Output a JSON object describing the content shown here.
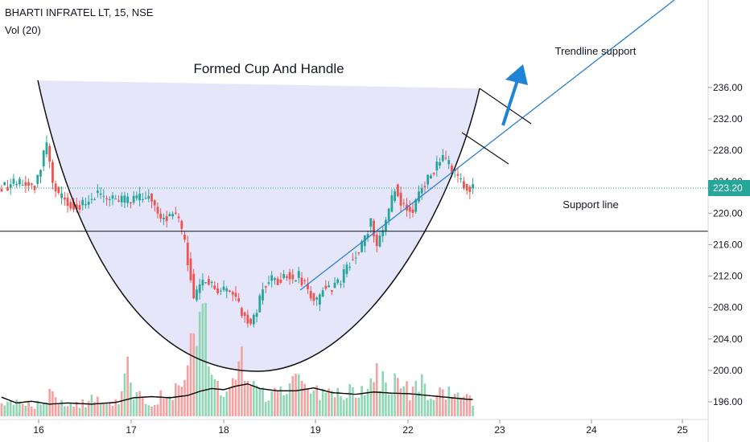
{
  "header": {
    "symbol_line": "BHARTI INFRATEL LT, 15, NSE",
    "volume_indicator": "Vol (20)"
  },
  "colors": {
    "up": "#26a69a",
    "down": "#ef5350",
    "vol_up": "#8fd6b4",
    "vol_down": "#f4a1a1",
    "cup_fill": "#e6e6fb",
    "trendline": "#2a7fd4",
    "last_price_bg": "#26a69a",
    "arrow": "#1f84d6",
    "vol_ma": "#000000"
  },
  "chart_data": {
    "type": "candlestick",
    "y_axis": {
      "range": [
        194.7,
        237.1
      ],
      "ticks": [
        "196.00",
        "200.00",
        "204.00",
        "208.00",
        "212.00",
        "216.00",
        "220.00",
        "224.00",
        "228.00",
        "232.00",
        "236.00"
      ]
    },
    "x_axis": {
      "ticks": [
        "16",
        "17",
        "18",
        "19",
        "22",
        "23",
        "24",
        "25"
      ]
    },
    "last_price": "223.20",
    "support_level": 217.7,
    "annotations": {
      "title": "Formed Cup And Handle",
      "trendline_label": "Trendline support",
      "support_label": "Support line"
    },
    "price_path": [
      [
        0,
        223.2
      ],
      [
        6,
        223.8
      ],
      [
        12,
        223.5
      ],
      [
        16,
        228.6
      ],
      [
        18,
        224.0
      ],
      [
        20,
        222.2
      ],
      [
        24,
        221.2
      ],
      [
        28,
        221.0
      ],
      [
        32,
        222.3
      ],
      [
        38,
        221.6
      ],
      [
        45,
        221.6
      ],
      [
        50,
        222.2
      ],
      [
        54,
        219.2
      ],
      [
        58,
        219.8
      ],
      [
        60,
        218.8
      ],
      [
        62,
        216.0
      ],
      [
        64,
        212.0
      ],
      [
        65,
        209.0
      ],
      [
        67,
        210.8
      ],
      [
        69,
        211.5
      ],
      [
        72,
        210.4
      ],
      [
        75,
        210.0
      ],
      [
        78,
        209.6
      ],
      [
        80,
        208.2
      ],
      [
        82,
        207.0
      ],
      [
        84,
        205.8
      ],
      [
        86,
        207.5
      ],
      [
        88,
        210.5
      ],
      [
        90,
        211.6
      ],
      [
        93,
        211.3
      ],
      [
        96,
        212.3
      ],
      [
        98,
        211.6
      ],
      [
        100,
        212.0
      ],
      [
        102,
        210.8
      ],
      [
        104,
        209.6
      ],
      [
        106,
        208.6
      ],
      [
        108,
        210.5
      ],
      [
        110,
        210.4
      ],
      [
        112,
        211.0
      ],
      [
        114,
        211.3
      ],
      [
        116,
        213.2
      ],
      [
        118,
        214.5
      ],
      [
        120,
        215.0
      ],
      [
        122,
        217.0
      ],
      [
        124,
        219.0
      ],
      [
        126,
        215.8
      ],
      [
        128,
        218.0
      ],
      [
        130,
        220.0
      ],
      [
        132,
        223.4
      ],
      [
        134,
        221.6
      ],
      [
        136,
        221.0
      ],
      [
        138,
        220.0
      ],
      [
        140,
        222.8
      ],
      [
        142,
        223.8
      ],
      [
        144,
        225.0
      ],
      [
        146,
        226.0
      ],
      [
        148,
        226.8
      ],
      [
        150,
        226.2
      ],
      [
        152,
        225.0
      ],
      [
        154,
        224.2
      ],
      [
        156,
        223.2
      ]
    ],
    "volume_path": [
      [
        0,
        2
      ],
      [
        5,
        3
      ],
      [
        10,
        2
      ],
      [
        14,
        3
      ],
      [
        16,
        4
      ],
      [
        19,
        2.5
      ],
      [
        24,
        2
      ],
      [
        30,
        3
      ],
      [
        35,
        2.5
      ],
      [
        40,
        3.5
      ],
      [
        42,
        10
      ],
      [
        44,
        4
      ],
      [
        50,
        3
      ],
      [
        55,
        4
      ],
      [
        60,
        5
      ],
      [
        64,
        14
      ],
      [
        66,
        15
      ],
      [
        68,
        17
      ],
      [
        70,
        6
      ],
      [
        74,
        4
      ],
      [
        78,
        7
      ],
      [
        80,
        13
      ],
      [
        82,
        6
      ],
      [
        86,
        4
      ],
      [
        96,
        5
      ],
      [
        98,
        11
      ],
      [
        100,
        5
      ],
      [
        104,
        4
      ],
      [
        108,
        6
      ],
      [
        110,
        4
      ],
      [
        120,
        5
      ],
      [
        124,
        8
      ],
      [
        130,
        5
      ],
      [
        132,
        7
      ],
      [
        136,
        5
      ],
      [
        140,
        6
      ],
      [
        144,
        4
      ],
      [
        148,
        5
      ],
      [
        152,
        4
      ],
      [
        156,
        3
      ]
    ],
    "volume_ma_path": [
      [
        0,
        3.3
      ],
      [
        5,
        2.3
      ],
      [
        10,
        2.6
      ],
      [
        16,
        2.1
      ],
      [
        22,
        2.3
      ],
      [
        30,
        2.1
      ],
      [
        38,
        2.4
      ],
      [
        44,
        3.2
      ],
      [
        50,
        3.4
      ],
      [
        56,
        3.2
      ],
      [
        62,
        3.6
      ],
      [
        66,
        4.3
      ],
      [
        70,
        4.8
      ],
      [
        74,
        4.6
      ],
      [
        78,
        5.2
      ],
      [
        82,
        5.6
      ],
      [
        86,
        4.8
      ],
      [
        92,
        4.4
      ],
      [
        98,
        4.4
      ],
      [
        104,
        4.9
      ],
      [
        110,
        4.1
      ],
      [
        118,
        3.8
      ],
      [
        124,
        4.2
      ],
      [
        130,
        4.0
      ],
      [
        136,
        3.9
      ],
      [
        142,
        3.6
      ],
      [
        148,
        3.3
      ],
      [
        156,
        2.9
      ]
    ]
  }
}
